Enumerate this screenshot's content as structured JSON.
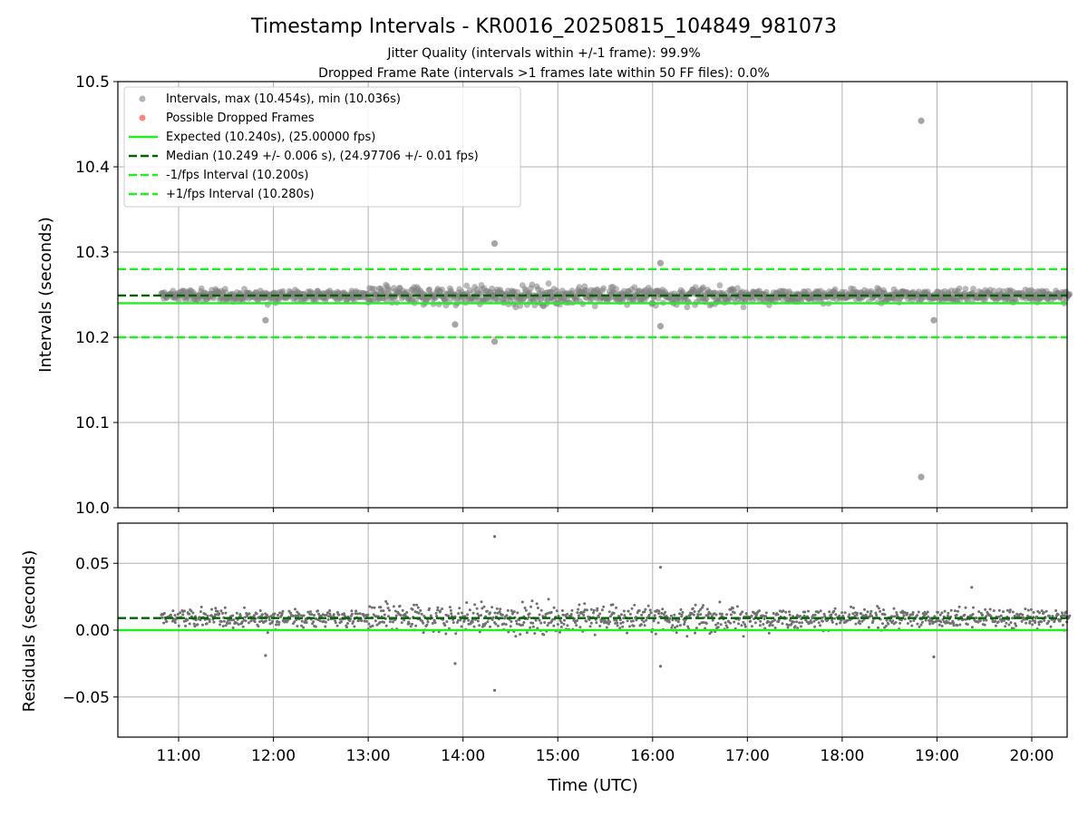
{
  "figure": {
    "title": "Timestamp Intervals - KR0016_20250815_104849_981073",
    "subtitle_1": "Jitter Quality (intervals within +/-1 frame): 99.9%",
    "subtitle_2": "Dropped Frame Rate (intervals >1 frames late within 50 FF files): 0.0%",
    "background": "#ffffff"
  },
  "chart_data": [
    {
      "type": "scatter",
      "panel": "intervals",
      "ylabel": "Intervals (seconds)",
      "ylim": [
        10.0,
        10.5
      ],
      "y_ticks": [
        "10.0",
        "10.1",
        "10.2",
        "10.3",
        "10.4",
        "10.5"
      ],
      "x_ticks": [
        "11:00",
        "12:00",
        "13:00",
        "14:00",
        "15:00",
        "16:00",
        "17:00",
        "18:00",
        "19:00",
        "20:00"
      ],
      "xlim": [
        "10:22",
        "20:24"
      ],
      "grid": true,
      "legend_position": "top-left",
      "colors": {
        "points": "#808080",
        "dropped": "#ff6666",
        "expected": "#22ee22",
        "median": "#006400",
        "bounds": "#22ee22"
      },
      "series": [
        {
          "name": "Intervals, max (10.454s), min (10.036s)",
          "kind": "points",
          "x_range": [
            "10:49",
            "20:24"
          ],
          "typical_center": 10.249,
          "typical_spread": 0.006,
          "outliers": [
            {
              "x": "14:20",
              "y": 10.31
            },
            {
              "x": "14:20",
              "y": 10.195
            },
            {
              "x": "16:05",
              "y": 10.287
            },
            {
              "x": "16:05",
              "y": 10.213
            },
            {
              "x": "18:50",
              "y": 10.454
            },
            {
              "x": "18:50",
              "y": 10.036
            },
            {
              "x": "11:55",
              "y": 10.22
            },
            {
              "x": "13:55",
              "y": 10.215
            },
            {
              "x": "18:58",
              "y": 10.22
            }
          ]
        },
        {
          "name": "Possible Dropped Frames",
          "kind": "points",
          "values": []
        },
        {
          "name": "Expected (10.240s), (25.00000 fps)",
          "kind": "hline",
          "y": 10.24
        },
        {
          "name": "Median (10.249 +/- 0.006 s), (24.97706 +/- 0.01 fps)",
          "kind": "hline-dashed",
          "y": 10.249
        },
        {
          "name": "-1/fps Interval (10.200s)",
          "kind": "hline-dashed",
          "y": 10.2
        },
        {
          "name": "+1/fps Interval (10.280s)",
          "kind": "hline-dashed",
          "y": 10.28
        }
      ]
    },
    {
      "type": "scatter",
      "panel": "residuals",
      "xlabel": "Time (UTC)",
      "ylabel": "Residuals (seconds)",
      "ylim": [
        -0.08,
        0.08
      ],
      "y_ticks": [
        "0.05",
        "0.00",
        "−0.05"
      ],
      "y_tick_values": [
        0.05,
        0.0,
        -0.05
      ],
      "x_ticks": [
        "11:00",
        "12:00",
        "13:00",
        "14:00",
        "15:00",
        "16:00",
        "17:00",
        "18:00",
        "19:00",
        "20:00"
      ],
      "grid": true,
      "series": [
        {
          "kind": "points",
          "x_range": [
            "10:49",
            "20:24"
          ],
          "typical_center": 0.009,
          "typical_spread": 0.006,
          "outliers": [
            {
              "x": "14:20",
              "y": 0.07
            },
            {
              "x": "14:20",
              "y": -0.045
            },
            {
              "x": "16:05",
              "y": 0.047
            },
            {
              "x": "16:05",
              "y": -0.027
            },
            {
              "x": "13:55",
              "y": -0.025
            },
            {
              "x": "18:58",
              "y": -0.02
            },
            {
              "x": "11:55",
              "y": -0.019
            },
            {
              "x": "19:22",
              "y": 0.032
            }
          ]
        },
        {
          "kind": "hline",
          "y": 0.0
        },
        {
          "kind": "hline-dashed",
          "y": 0.009
        }
      ]
    }
  ]
}
